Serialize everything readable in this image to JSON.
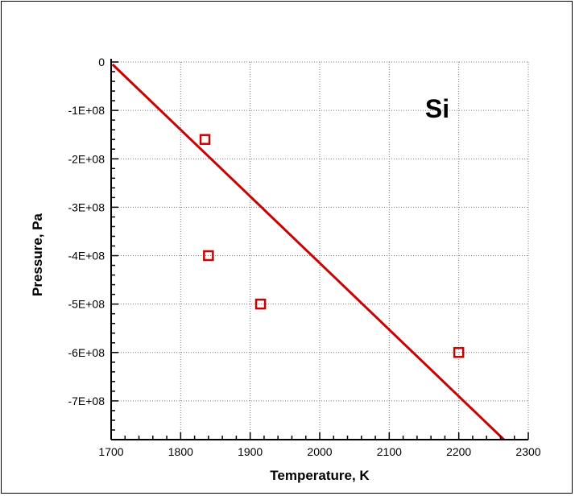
{
  "chart_data": {
    "type": "scatter",
    "title": "",
    "xlabel": "Temperature, K",
    "ylabel": "Pressure, Pa",
    "xlim": [
      1700,
      2300
    ],
    "ylim": [
      -780000000,
      0
    ],
    "x_ticks": [
      1700,
      1800,
      1900,
      2000,
      2100,
      2200,
      2300
    ],
    "x_tick_labels": [
      "1700",
      "1800",
      "1900",
      "2000",
      "2100",
      "2200",
      "2300"
    ],
    "y_ticks": [
      0,
      -100000000,
      -200000000,
      -300000000,
      -400000000,
      -500000000,
      -600000000,
      -700000000
    ],
    "y_tick_labels": [
      "0",
      "-1E+08",
      "-2E+08",
      "-3E+08",
      "-4E+08",
      "-5E+08",
      "-6E+08",
      "-7E+08"
    ],
    "grid": true,
    "annotation": "Si",
    "colors": {
      "series": "#cc0000"
    },
    "series": [
      {
        "kind": "line",
        "x": [
          1702,
          2265
        ],
        "y": [
          -5000000,
          -780000000
        ]
      },
      {
        "kind": "scatter",
        "marker": "square-open",
        "x": [
          1835,
          1840,
          1915,
          2200
        ],
        "y": [
          -160000000,
          -400000000,
          -500000000,
          -600000000
        ]
      }
    ]
  }
}
